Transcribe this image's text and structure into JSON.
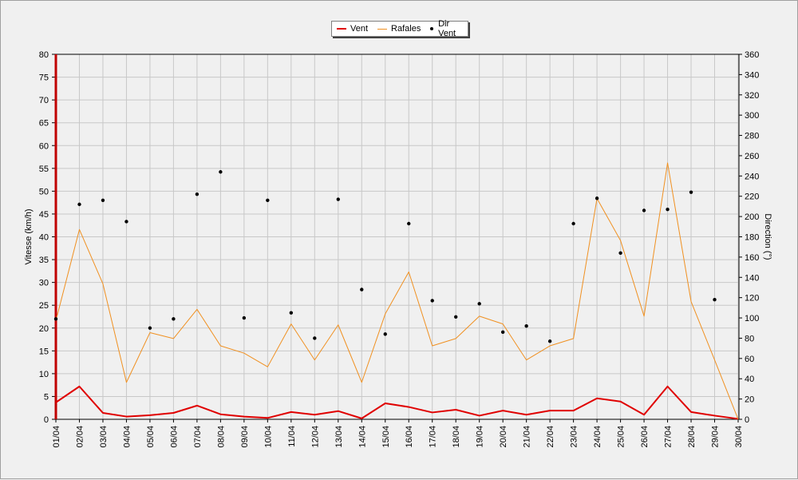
{
  "chart_data": {
    "type": "line",
    "categories": [
      "01/04",
      "02/04",
      "03/04",
      "04/04",
      "05/04",
      "06/04",
      "07/04",
      "08/04",
      "09/04",
      "10/04",
      "11/04",
      "12/04",
      "13/04",
      "14/04",
      "15/04",
      "16/04",
      "17/04",
      "18/04",
      "19/04",
      "20/04",
      "21/04",
      "22/04",
      "23/04",
      "24/04",
      "25/04",
      "26/04",
      "27/04",
      "28/04",
      "29/04",
      "30/04"
    ],
    "ylabel": "Vitesse (km/h)",
    "y2label": "Direction (°)",
    "ylim": [
      0,
      80
    ],
    "y2lim": [
      0,
      360
    ],
    "yticks": [
      0,
      5,
      10,
      15,
      20,
      25,
      30,
      35,
      40,
      45,
      50,
      55,
      60,
      65,
      70,
      75,
      80
    ],
    "y2ticks": [
      0,
      20,
      40,
      60,
      80,
      100,
      120,
      140,
      160,
      180,
      200,
      220,
      240,
      260,
      280,
      300,
      320,
      340,
      360
    ],
    "grid": true,
    "legend_position": "top-center",
    "series": [
      {
        "name": "Vent",
        "color": "#e00000",
        "axis": "left",
        "style": "line",
        "values": [
          3.7,
          7.2,
          1.4,
          0.6,
          0.9,
          1.4,
          3.0,
          1.1,
          0.6,
          0.3,
          1.6,
          1.0,
          1.8,
          0.2,
          3.5,
          2.7,
          1.5,
          2.1,
          0.8,
          1.9,
          1.0,
          1.9,
          1.9,
          4.6,
          3.9,
          1.0,
          7.2,
          1.6,
          0.8,
          0.1
        ]
      },
      {
        "name": "Rafales",
        "color": "#f09020",
        "axis": "left",
        "style": "line",
        "values": [
          21.6,
          41.6,
          29.7,
          8.1,
          19.0,
          17.7,
          24.1,
          16.1,
          14.5,
          11.5,
          20.9,
          13.0,
          20.7,
          8.1,
          23.1,
          32.3,
          16.1,
          17.7,
          22.6,
          20.9,
          13.0,
          16.1,
          17.7,
          48.4,
          39.2,
          22.6,
          56.2,
          25.8,
          13.0,
          0.0
        ]
      },
      {
        "name": "Dir Vent",
        "color": "#000000",
        "axis": "right",
        "style": "points",
        "values": [
          99,
          212,
          216,
          195,
          90,
          99,
          222,
          244,
          100,
          216,
          105,
          80,
          217,
          128,
          84,
          193,
          117,
          101,
          114,
          86,
          92,
          77,
          193,
          218,
          164,
          206,
          207,
          224,
          118,
          null
        ]
      }
    ]
  }
}
